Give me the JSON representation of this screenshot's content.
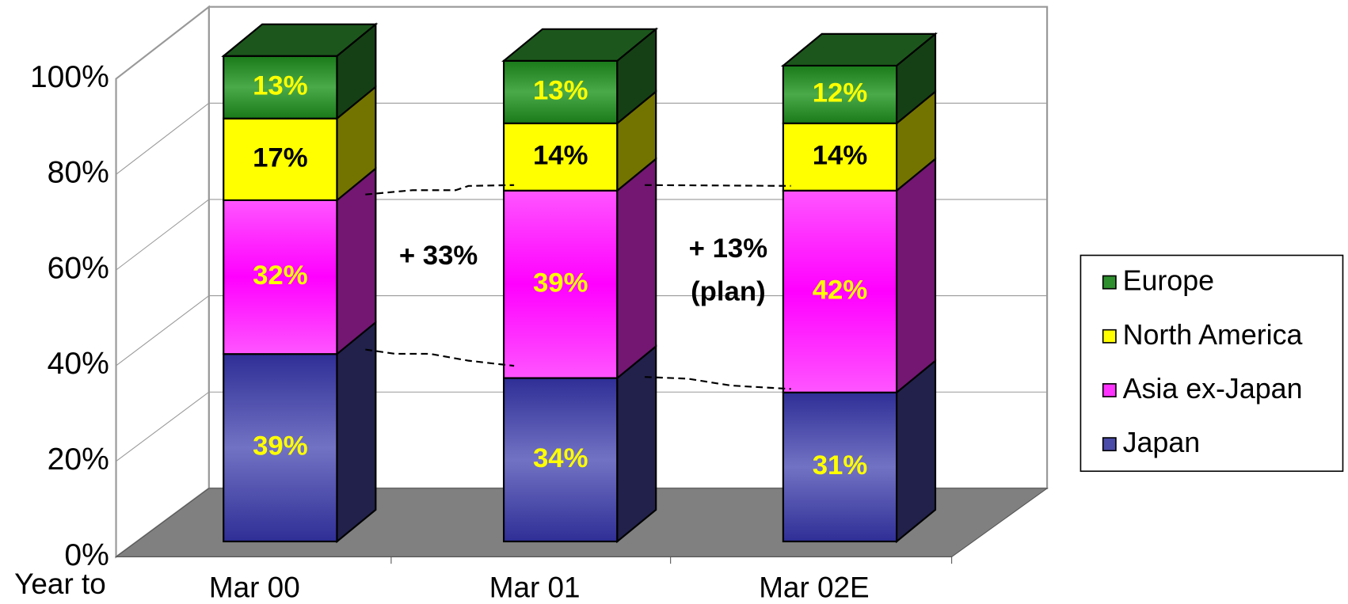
{
  "chart_data": {
    "type": "bar3d_stacked",
    "x_label": "Year to",
    "categories": [
      "Mar 00",
      "Mar 01",
      "Mar 02E"
    ],
    "series": [
      {
        "name": "Japan",
        "color": "#4a4aa8",
        "label_color": "#ffff00",
        "values": [
          39,
          34,
          31
        ],
        "value_labels": [
          "39%",
          "34%",
          "31%"
        ]
      },
      {
        "name": "Asia ex-Japan",
        "color": "#ff33ff",
        "label_color": "#ffff00",
        "values": [
          32,
          39,
          42
        ],
        "value_labels": [
          "32%",
          "39%",
          "42%"
        ]
      },
      {
        "name": "North America",
        "color": "#ffff00",
        "label_color": "#000000",
        "values": [
          17,
          14,
          14
        ],
        "value_labels": [
          "17%",
          "14%",
          "14%"
        ]
      },
      {
        "name": "Europe",
        "color": "#2e8f2e",
        "label_color": "#ffff00",
        "values": [
          13,
          13,
          12
        ],
        "value_labels": [
          "13%",
          "13%",
          "12%"
        ]
      }
    ],
    "ylim": [
      0,
      100
    ],
    "yticks": [
      {
        "value": 0,
        "label": "0%"
      },
      {
        "value": 20,
        "label": "20%"
      },
      {
        "value": 40,
        "label": "40%"
      },
      {
        "value": 60,
        "label": "60%"
      },
      {
        "value": 80,
        "label": "80%"
      },
      {
        "value": 100,
        "label": "100%"
      }
    ],
    "grid": true,
    "legend": "right",
    "annotations": [
      "+ 33%",
      "+ 13%",
      "(plan)"
    ]
  }
}
